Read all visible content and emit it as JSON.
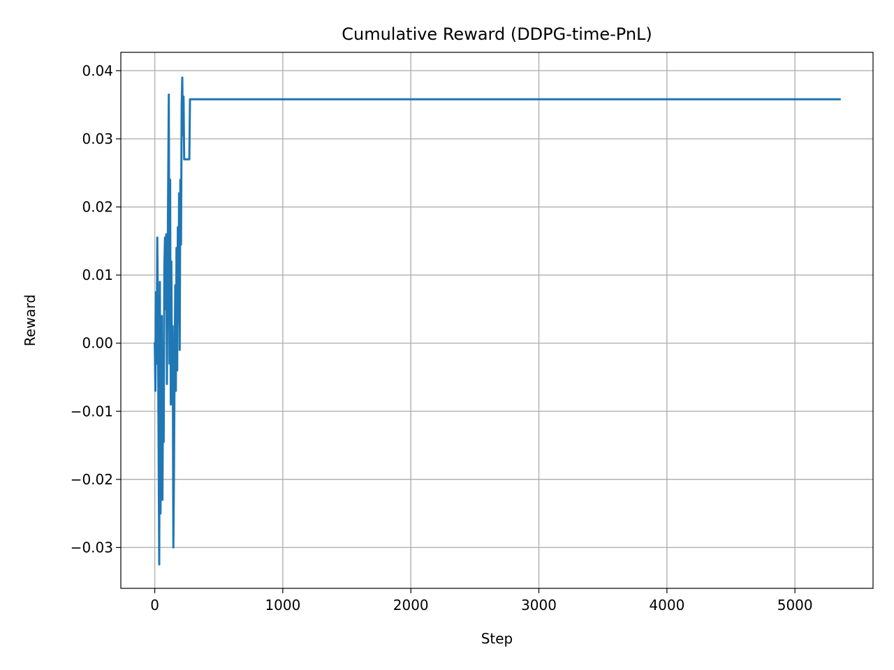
{
  "chart_data": {
    "type": "line",
    "title": "Cumulative Reward (DDPG-time-PnL)",
    "xlabel": "Step",
    "ylabel": "Reward",
    "xlim": [
      -265,
      5610
    ],
    "ylim": [
      -0.036,
      0.0427
    ],
    "xticks": [
      0,
      1000,
      2000,
      3000,
      4000,
      5000
    ],
    "xtick_labels": [
      "0",
      "1000",
      "2000",
      "3000",
      "4000",
      "5000"
    ],
    "yticks": [
      -0.03,
      -0.02,
      -0.01,
      0.0,
      0.01,
      0.02,
      0.03,
      0.04
    ],
    "ytick_labels": [
      "−0.03",
      "−0.02",
      "−0.01",
      "0.00",
      "0.01",
      "0.02",
      "0.03",
      "0.04"
    ],
    "grid": true,
    "line_color": "#1f77b4",
    "series": [
      {
        "x": [
          0,
          5,
          10,
          15,
          20,
          25,
          30,
          35,
          40,
          45,
          50,
          55,
          60,
          65,
          70,
          75,
          80,
          85,
          90,
          95,
          100,
          105,
          110,
          115,
          120,
          125,
          130,
          135,
          140,
          145,
          150,
          155,
          160,
          165,
          170,
          175,
          180,
          185,
          190,
          195,
          200,
          205,
          210,
          215,
          220,
          225,
          230,
          235,
          240,
          245,
          250,
          255,
          260,
          265,
          270,
          275,
          280,
          285,
          290,
          295,
          300,
          305,
          310,
          315,
          320,
          325,
          330,
          335,
          340,
          345,
          350,
          360,
          370,
          380,
          390,
          400,
          410,
          5350
        ],
        "y": [
          0.0,
          -0.007,
          0.0075,
          -0.003,
          0.0155,
          0.002,
          -0.016,
          -0.0325,
          0.009,
          -0.025,
          -0.012,
          0.004,
          -0.023,
          -0.005,
          -0.0145,
          0.011,
          0.0155,
          0.005,
          0.016,
          -0.006,
          0.009,
          0.0235,
          0.0365,
          -0.003,
          0.024,
          -0.009,
          0.012,
          -0.0075,
          0.0025,
          -0.03,
          -0.019,
          -0.003,
          0.0085,
          -0.007,
          0.014,
          -0.004,
          0.017,
          0.003,
          0.022,
          -0.001,
          0.024,
          0.0145,
          0.035,
          0.039,
          0.0305,
          0.0362,
          0.027,
          0.027,
          0.027,
          0.027,
          0.027,
          0.027,
          0.027,
          0.027,
          0.027,
          0.0358,
          0.0358,
          0.0358,
          0.0358,
          0.0358,
          0.0358,
          0.0358,
          0.0358,
          0.0358,
          0.0358,
          0.0358,
          0.0358,
          0.0358,
          0.0358,
          0.0358,
          0.0358,
          0.0358,
          0.0358,
          0.0358,
          0.0358,
          0.0358,
          0.0358,
          0.0358
        ]
      }
    ]
  }
}
